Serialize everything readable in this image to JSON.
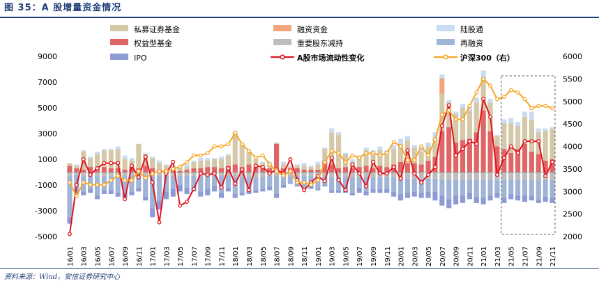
{
  "header": {
    "title": "图 35：A 股增量资金情况"
  },
  "footer": {
    "source": "资料来源：Wind，安信证券研究中心"
  },
  "colors": {
    "private": "#d5c8a8",
    "margin_funds": "#f1a77b",
    "northbound": "#c9dcf2",
    "equity_funds": "#e06666",
    "shareholder": "#bdbdbd",
    "refinance": "#9fb4d6",
    "ipo": "#8e9bd4",
    "liquidity": "#e3121b",
    "hs300": "#f6a623",
    "title": "#1f3d7a"
  },
  "legend": [
    {
      "key": "private",
      "label": "私募证券基金",
      "kind": "box"
    },
    {
      "key": "margin_funds",
      "label": "融资资金",
      "kind": "box"
    },
    {
      "key": "northbound",
      "label": "陆股通",
      "kind": "box"
    },
    {
      "key": "equity_funds",
      "label": "权益型基金",
      "kind": "box"
    },
    {
      "key": "shareholder",
      "label": "重要股东减持",
      "kind": "box"
    },
    {
      "key": "refinance",
      "label": "再融资",
      "kind": "box"
    },
    {
      "key": "ipo",
      "label": "IPO",
      "kind": "box"
    },
    {
      "key": "liquidity",
      "label": "A股市场流动性变化",
      "kind": "line",
      "bold": true
    },
    {
      "key": "hs300",
      "label": "沪深300（右）",
      "kind": "line",
      "bold": true
    }
  ],
  "chart_data": {
    "type": "bar",
    "title": "",
    "xlabel": "",
    "ylabel": "",
    "ylim": [
      -5000,
      9000
    ],
    "yticks": [
      -5000,
      -3000,
      -1000,
      1000,
      3000,
      5000,
      7000,
      9000
    ],
    "y2lim": [
      2000,
      6000
    ],
    "y2ticks": [
      2000,
      2500,
      3000,
      3500,
      4000,
      4500,
      5000,
      5500,
      6000
    ],
    "xtick_labels": [
      "16/01",
      "16/03",
      "16/05",
      "16/07",
      "16/09",
      "16/11",
      "17/01",
      "17/03",
      "17/05",
      "17/07",
      "17/09",
      "17/11",
      "18/01",
      "18/03",
      "18/05",
      "18/07",
      "18/09",
      "18/11",
      "19/01",
      "19/03",
      "19/05",
      "19/07",
      "19/09",
      "19/11",
      "20/01",
      "20/03",
      "20/05",
      "20/07",
      "20/09",
      "20/11",
      "21/01",
      "21/03",
      "21/05",
      "21/07",
      "21/09",
      "21/11"
    ],
    "categories": [
      "16/01",
      "16/02",
      "16/03",
      "16/04",
      "16/05",
      "16/06",
      "16/07",
      "16/08",
      "16/09",
      "16/10",
      "16/11",
      "16/12",
      "17/01",
      "17/02",
      "17/03",
      "17/04",
      "17/05",
      "17/06",
      "17/07",
      "17/08",
      "17/09",
      "17/10",
      "17/11",
      "17/12",
      "18/01",
      "18/02",
      "18/03",
      "18/04",
      "18/05",
      "18/06",
      "18/07",
      "18/08",
      "18/09",
      "18/10",
      "18/11",
      "18/12",
      "19/01",
      "19/02",
      "19/03",
      "19/04",
      "19/05",
      "19/06",
      "19/07",
      "19/08",
      "19/09",
      "19/10",
      "19/11",
      "19/12",
      "20/01",
      "20/02",
      "20/03",
      "20/04",
      "20/05",
      "20/06",
      "20/07",
      "20/08",
      "20/09",
      "20/10",
      "20/11",
      "20/12",
      "21/01",
      "21/02",
      "21/03",
      "21/04",
      "21/05",
      "21/06",
      "21/07",
      "21/08",
      "21/09",
      "21/10",
      "21/11"
    ],
    "stacked_positive": [
      {
        "name": "权益型基金",
        "key": "equity_funds",
        "values": [
          500,
          300,
          200,
          400,
          300,
          400,
          300,
          300,
          200,
          400,
          300,
          500,
          300,
          200,
          200,
          200,
          100,
          200,
          300,
          300,
          400,
          400,
          300,
          500,
          600,
          400,
          600,
          400,
          300,
          300,
          2200,
          300,
          300,
          300,
          200,
          200,
          200,
          900,
          600,
          300,
          400,
          300,
          400,
          500,
          300,
          500,
          400,
          600,
          800,
          700,
          700,
          600,
          900,
          1200,
          3200,
          3500,
          2300,
          2500,
          2600,
          3100,
          4800,
          3200,
          2000,
          1800,
          1500,
          1800,
          2200,
          1600,
          1400,
          900,
          1000
        ]
      },
      {
        "name": "私募证券基金",
        "key": "private",
        "values": [
          200,
          200,
          1400,
          700,
          1100,
          1300,
          1400,
          1500,
          800,
          500,
          1900,
          900,
          800,
          500,
          300,
          200,
          200,
          200,
          500,
          600,
          500,
          600,
          700,
          800,
          2400,
          1800,
          900,
          600,
          400,
          300,
          100,
          300,
          100,
          200,
          300,
          200,
          400,
          900,
          2500,
          2600,
          1000,
          500,
          800,
          1200,
          1200,
          1200,
          1100,
          1200,
          1400,
          1800,
          1200,
          1000,
          1100,
          1500,
          2900,
          1900,
          2200,
          2500,
          2200,
          2300,
          2600,
          2200,
          800,
          2000,
          2300,
          1800,
          2100,
          2500,
          1700,
          2300,
          2400
        ]
      },
      {
        "name": "融资资金",
        "key": "margin_funds",
        "values": [
          0,
          0,
          0,
          0,
          0,
          0,
          0,
          0,
          0,
          0,
          0,
          0,
          0,
          0,
          0,
          0,
          0,
          0,
          0,
          0,
          0,
          0,
          0,
          0,
          0,
          0,
          0,
          0,
          0,
          0,
          0,
          0,
          0,
          0,
          0,
          0,
          0,
          0,
          0,
          0,
          0,
          0,
          0,
          0,
          0,
          0,
          0,
          0,
          0,
          0,
          0,
          0,
          0,
          0,
          1200,
          0,
          0,
          0,
          0,
          0,
          0,
          0,
          0,
          0,
          0,
          0,
          0,
          0,
          0,
          0,
          0
        ]
      },
      {
        "name": "陆股通",
        "key": "northbound",
        "values": [
          0,
          100,
          100,
          100,
          200,
          100,
          100,
          200,
          300,
          200,
          0,
          100,
          100,
          200,
          100,
          100,
          100,
          200,
          100,
          200,
          200,
          100,
          200,
          100,
          200,
          100,
          100,
          0,
          100,
          200,
          0,
          200,
          100,
          100,
          200,
          100,
          200,
          100,
          300,
          200,
          100,
          200,
          100,
          200,
          200,
          300,
          200,
          300,
          400,
          300,
          200,
          400,
          300,
          400,
          300,
          200,
          200,
          300,
          300,
          400,
          500,
          300,
          100,
          300,
          400,
          300,
          400,
          600,
          300,
          200,
          100
        ]
      }
    ],
    "stacked_negative": [
      {
        "name": "重要股东减持",
        "key": "shareholder",
        "values": [
          -300,
          -200,
          -300,
          -300,
          -300,
          -300,
          -300,
          -300,
          -300,
          -300,
          -300,
          -300,
          -300,
          -300,
          -300,
          -300,
          -300,
          -300,
          -300,
          -300,
          -300,
          -300,
          -300,
          -300,
          -400,
          -400,
          -400,
          -400,
          -400,
          -300,
          -300,
          -300,
          -300,
          -300,
          -300,
          -300,
          -300,
          -300,
          -400,
          -400,
          -400,
          -400,
          -400,
          -400,
          -400,
          -400,
          -400,
          -400,
          -500,
          -500,
          -500,
          -500,
          -500,
          -500,
          -600,
          -600,
          -600,
          -600,
          -600,
          -600,
          -600,
          -600,
          -600,
          -600,
          -600,
          -600,
          -600,
          -600,
          -600,
          -600,
          -600
        ]
      },
      {
        "name": "再融资",
        "key": "refinance",
        "values": [
          -3200,
          -1200,
          -1200,
          -1000,
          -1500,
          -1100,
          -1100,
          -1300,
          -1400,
          -1200,
          -900,
          -1600,
          -2500,
          -1900,
          -1200,
          -1000,
          -700,
          -900,
          -800,
          -1200,
          -1000,
          -800,
          -1300,
          -900,
          -1300,
          -1200,
          -1000,
          -1000,
          -900,
          -800,
          -1400,
          -700,
          -500,
          -700,
          -800,
          -800,
          -1000,
          -700,
          -1000,
          -1000,
          -1000,
          -1200,
          -800,
          -1100,
          -900,
          -900,
          -900,
          -1100,
          -1200,
          -1100,
          -1000,
          -1100,
          -1000,
          -1000,
          -1200,
          -1500,
          -1200,
          -1200,
          -1000,
          -1300,
          -1400,
          -1200,
          -1000,
          -1400,
          -1100,
          -1200,
          -1200,
          -1200,
          -1500,
          -1300,
          -1400
        ]
      },
      {
        "name": "IPO",
        "key": "ipo",
        "values": [
          -500,
          -300,
          -300,
          -300,
          -300,
          -300,
          -300,
          -300,
          -300,
          -300,
          -300,
          -300,
          -700,
          -700,
          -600,
          -600,
          -500,
          -500,
          -400,
          -400,
          -500,
          -400,
          -400,
          -300,
          -300,
          -200,
          -300,
          -200,
          -200,
          -300,
          -300,
          -200,
          -100,
          -100,
          -100,
          -200,
          -100,
          -100,
          -200,
          -200,
          -200,
          -200,
          -400,
          -300,
          -300,
          -300,
          -300,
          -400,
          -500,
          -400,
          -400,
          -400,
          -500,
          -700,
          -800,
          -700,
          -700,
          -600,
          -500,
          -500,
          -500,
          -400,
          -400,
          -400,
          -400,
          -400,
          -500,
          -400,
          -300,
          -400,
          -400
        ]
      }
    ],
    "lines": [
      {
        "name": "A股市场流动性变化",
        "key": "liquidity",
        "axis": "left",
        "values": [
          -4800,
          -1000,
          1000,
          -200,
          300,
          700,
          700,
          700,
          -2100,
          500,
          -400,
          1200,
          -800,
          -3900,
          -100,
          800,
          -2600,
          -2300,
          -1300,
          -100,
          -200,
          -100,
          -1200,
          300,
          -900,
          200,
          -1400,
          500,
          400,
          -100,
          200,
          -100,
          1000,
          -600,
          -1400,
          -800,
          -300,
          -700,
          1100,
          -600,
          -1400,
          600,
          -100,
          -1100,
          800,
          -100,
          -100,
          400,
          -500,
          1700,
          -100,
          -800,
          -200,
          400,
          3600,
          5200,
          1300,
          1800,
          2400,
          2200,
          5700,
          4300,
          -200,
          1100,
          2000,
          1500,
          2400,
          2400,
          2400,
          -300,
          800
        ]
      },
      {
        "name": "沪深300（右）",
        "key": "hs300",
        "axis": "right",
        "values": [
          3200,
          2900,
          3200,
          3150,
          3150,
          3150,
          3250,
          3350,
          3250,
          3250,
          3450,
          3300,
          3400,
          3450,
          3450,
          3500,
          3550,
          3650,
          3800,
          3800,
          3850,
          4000,
          4000,
          4050,
          4300,
          4050,
          3900,
          3750,
          3800,
          3600,
          3450,
          3350,
          3450,
          3200,
          3200,
          3150,
          3250,
          3650,
          3900,
          3850,
          3650,
          3800,
          3750,
          3850,
          3850,
          3800,
          3850,
          4100,
          4000,
          3700,
          3700,
          4000,
          3800,
          4150,
          4700,
          4800,
          4600,
          4600,
          4900,
          5200,
          5500,
          5350,
          5050,
          5100,
          5250,
          5200,
          5050,
          4850,
          4900,
          4900,
          4850
        ]
      }
    ],
    "highlight_box": {
      "from_category": "21/04",
      "to_category": "21/11",
      "style": "dashed"
    },
    "grid": false,
    "legend_position": "top"
  }
}
